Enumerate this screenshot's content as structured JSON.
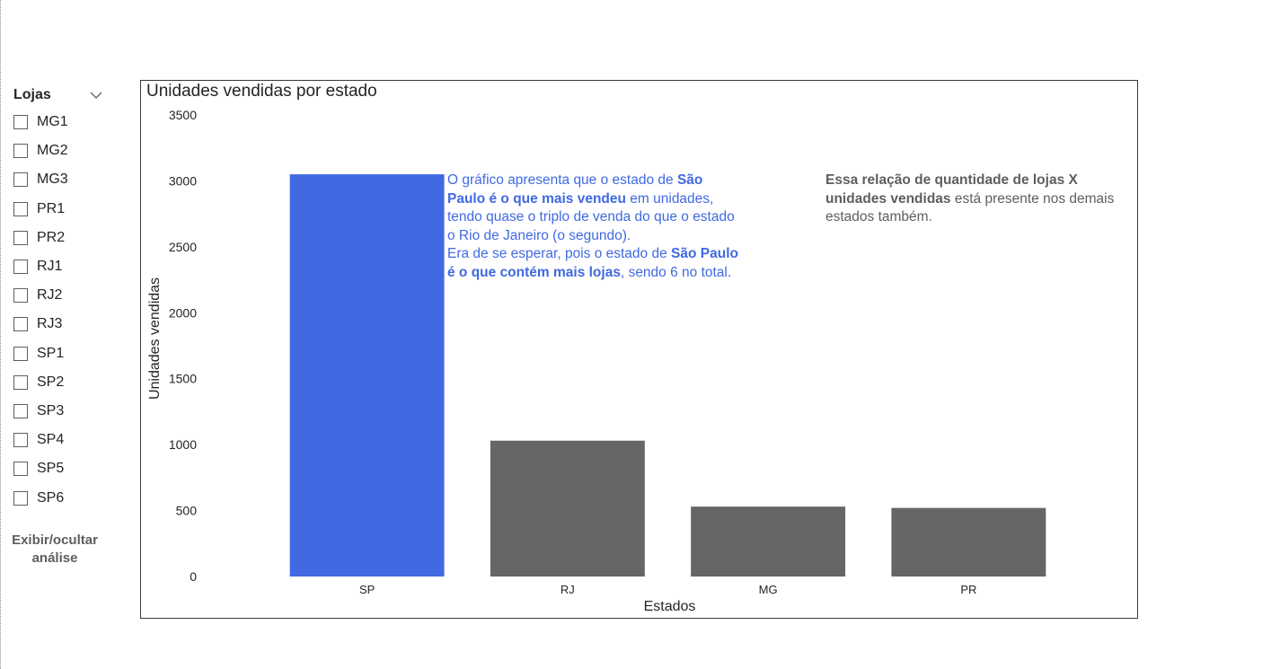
{
  "slicer": {
    "title": "Lojas",
    "items": [
      "MG1",
      "MG2",
      "MG3",
      "PR1",
      "PR2",
      "RJ1",
      "RJ2",
      "RJ3",
      "SP1",
      "SP2",
      "SP3",
      "SP4",
      "SP5",
      "SP6"
    ]
  },
  "toggle": {
    "line1": "Exibir/ocultar",
    "line2": "análise"
  },
  "annotations": {
    "blue": {
      "p1_a": "O gráfico apresenta que o estado de ",
      "p1_b": "São Paulo é o que mais vendeu",
      "p1_c": " em unidades, tendo quase o triplo de venda do que o estado o Rio de Janeiro (o segundo).",
      "p2_a": "Era de se esperar, pois o estado de ",
      "p2_b": "São Paulo é o que contém mais lojas",
      "p2_c": ", sendo 6 no total."
    },
    "gray": {
      "bold": "Essa relação de quantidade de lojas X unidades vendidas",
      "rest": " está presente nos demais estados também."
    }
  },
  "chart_data": {
    "type": "bar",
    "title": "Unidades vendidas por estado",
    "xlabel": "Estados",
    "ylabel": "Unidades vendidas",
    "categories": [
      "SP",
      "RJ",
      "MG",
      "PR"
    ],
    "values": [
      3050,
      1030,
      530,
      520
    ],
    "ylim": [
      0,
      3500
    ],
    "yticks": [
      0,
      500,
      1000,
      1500,
      2000,
      2500,
      3000,
      3500
    ],
    "grid": false,
    "colors": {
      "highlight": "#4169e1",
      "default": "#666666"
    },
    "highlight_index": 0
  }
}
